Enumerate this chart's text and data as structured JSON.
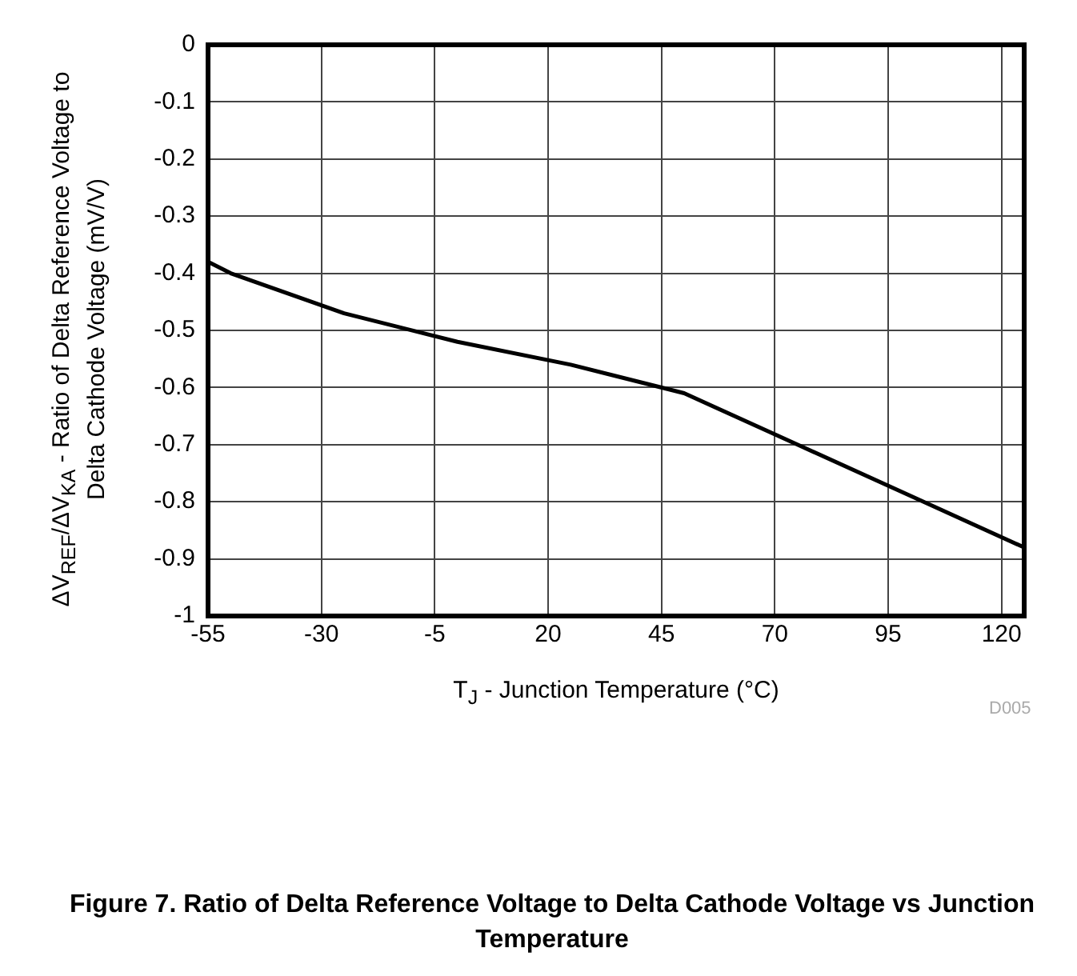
{
  "chart_data": {
    "type": "line",
    "title": "Figure 7. Ratio of Delta Reference Voltage to Delta Cathode Voltage vs Junction Temperature",
    "xlabel": "T$_{J}$ - Junction Temperature (°C)",
    "ylabel": "ΔV$_{REF}$/ΔV$_{KA}$ - Ratio of Delta Reference Voltage to Delta Cathode Voltage (mV/V)",
    "annotations": [
      "D005"
    ],
    "x": [
      -55,
      -50,
      -25,
      0,
      25,
      50,
      75,
      100,
      125
    ],
    "series": [
      {
        "color": "#000000",
        "values": [
          -0.38,
          -0.4,
          -0.47,
          -0.52,
          -0.56,
          -0.61,
          -0.7,
          -0.79,
          -0.88
        ]
      }
    ],
    "xlim": [
      -55,
      125
    ],
    "xticks": [
      -55,
      -30,
      -5,
      20,
      45,
      70,
      95,
      120
    ],
    "ylim": [
      -1,
      0
    ],
    "yticks": [
      -1,
      -0.9,
      -0.8,
      -0.7,
      -0.6,
      -0.5,
      -0.4,
      -0.3,
      -0.2,
      -0.1,
      0
    ],
    "grid": true,
    "marker": "none",
    "line_style": "solid"
  }
}
